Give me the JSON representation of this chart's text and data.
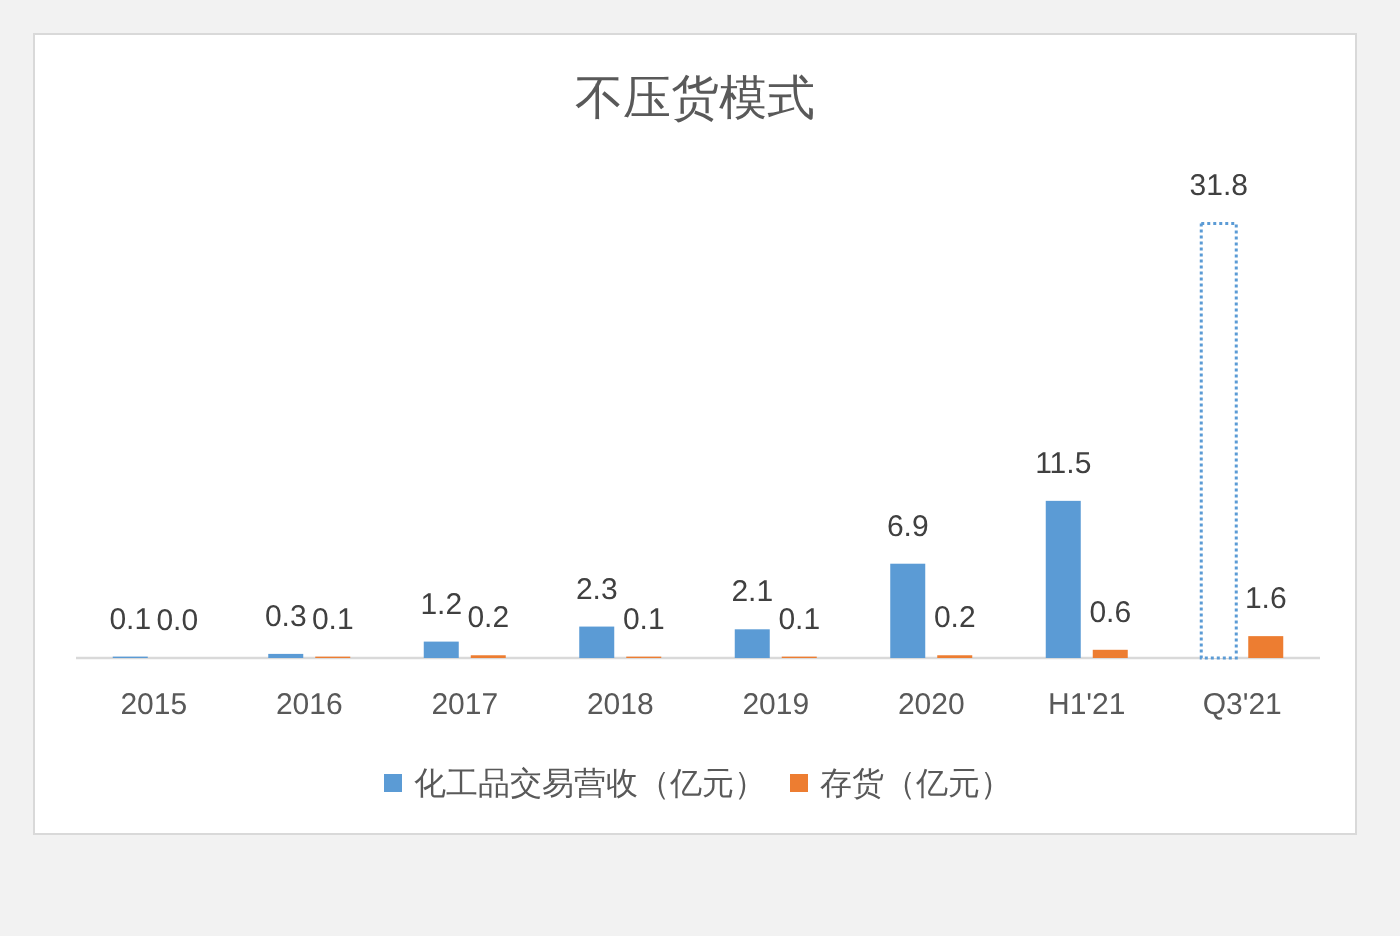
{
  "chart_data": {
    "type": "bar",
    "title": "不压货模式",
    "categories": [
      "2015",
      "2016",
      "2017",
      "2018",
      "2019",
      "2020",
      "H1'21",
      "Q3'21"
    ],
    "series": [
      {
        "name": "化工品交易营收（亿元）",
        "color": "#5b9bd5",
        "colors": [
          "#5b9bd5",
          "#5b9bd5",
          "#5b9bd5",
          "#5b9bd5",
          "#5b9bd5",
          "#5b9bd5",
          "#5b9bd5",
          "#ffffff"
        ],
        "line_style": "dotted",
        "values": [
          0.1,
          0.3,
          1.2,
          2.3,
          2.1,
          6.9,
          11.5,
          31.8
        ],
        "value_labels": [
          "0.1",
          "0.3",
          "1.2",
          "2.3",
          "2.1",
          "6.9",
          "11.5",
          "31.8"
        ]
      },
      {
        "name": "存货（亿元）",
        "color": "#ed7d31",
        "values": [
          0.0,
          0.1,
          0.2,
          0.1,
          0.1,
          0.2,
          0.6,
          1.6
        ],
        "value_labels": [
          "0.0",
          "0.1",
          "0.2",
          "0.1",
          "0.1",
          "0.2",
          "0.6",
          "1.6"
        ]
      }
    ],
    "legend": "bottom"
  }
}
